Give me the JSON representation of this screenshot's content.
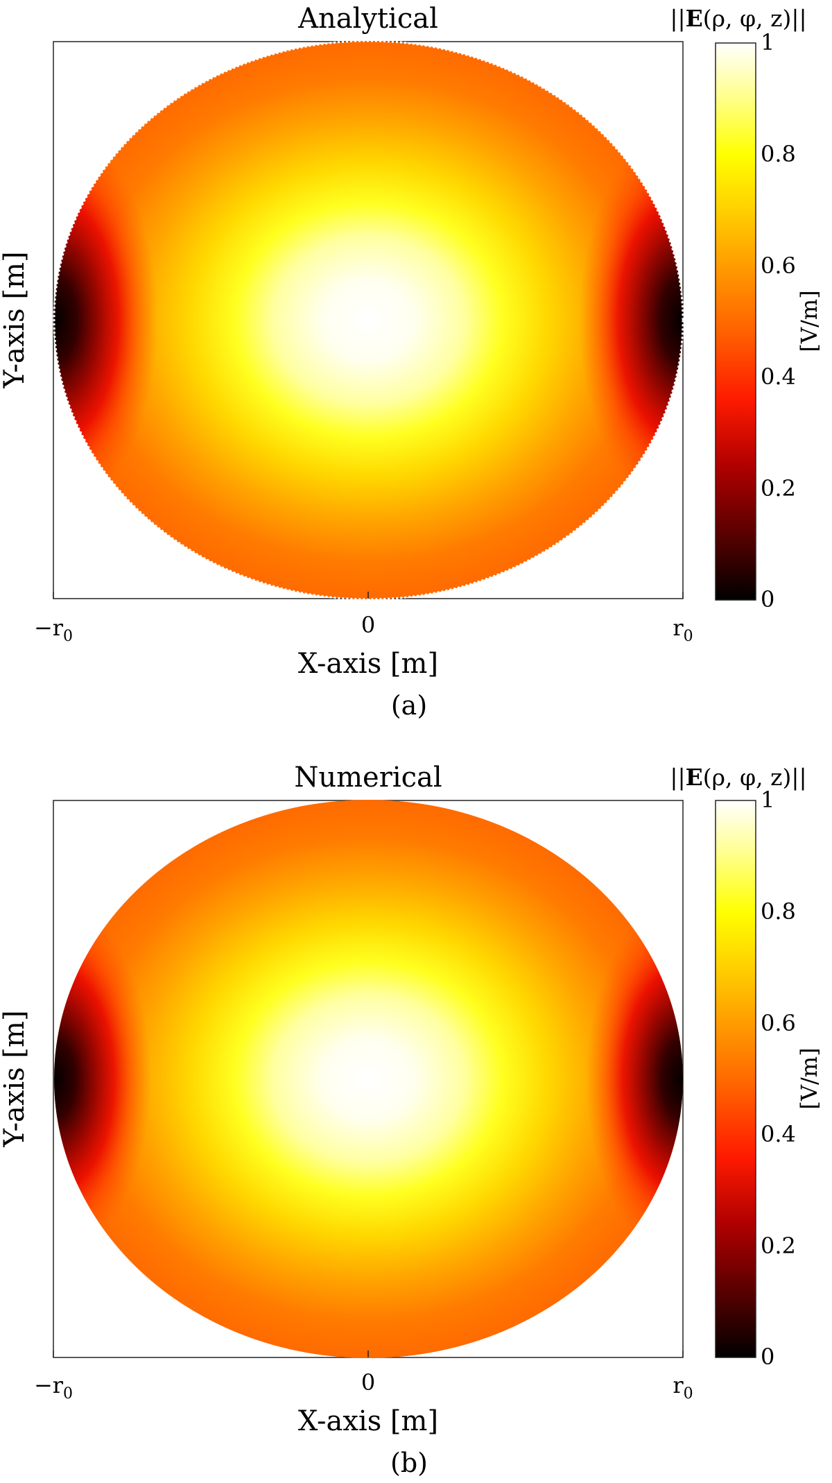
{
  "figure": {
    "panels": [
      {
        "title": "Analytical",
        "caption": "(a)",
        "xlabel": "X-axis [m]",
        "ylabel": "Y-axis [m]",
        "xticks": [
          "−r",
          "0",
          "r"
        ],
        "tick_subscript": "0",
        "colorbar_title": "||E(ρ, φ, z)||",
        "colorbar_title_bold": "E",
        "colorbar_unit": "[V/m]",
        "colorbar_ticks": [
          "0",
          "0.2",
          "0.4",
          "0.6",
          "0.8",
          "1"
        ]
      },
      {
        "title": "Numerical",
        "caption": "(b)",
        "xlabel": "X-axis [m]",
        "ylabel": "Y-axis [m]",
        "xticks": [
          "−r",
          "0",
          "r"
        ],
        "tick_subscript": "0",
        "colorbar_title": "||E(ρ, φ, z)||",
        "colorbar_title_bold": "E",
        "colorbar_unit": "[V/m]",
        "colorbar_ticks": [
          "0",
          "0.2",
          "0.4",
          "0.6",
          "0.8",
          "1"
        ]
      }
    ]
  },
  "chart_data": [
    {
      "type": "heatmap",
      "title": "Analytical",
      "xlabel": "X-axis [m]",
      "ylabel": "Y-axis [m]",
      "x_ticks": [
        "-r0",
        "0",
        "r0"
      ],
      "x_range": [
        -1,
        1
      ],
      "y_range": [
        -1,
        1
      ],
      "domain": "circular disk of radius r0 (pixelated edge)",
      "field": "||E(rho, phi, z)||",
      "colorbar": {
        "label": "[V/m]",
        "colormap": "hot",
        "range": [
          0,
          1
        ],
        "ticks": [
          0,
          0.2,
          0.4,
          0.6,
          0.8,
          1
        ]
      },
      "features": {
        "max_at": [
          0,
          0
        ],
        "max_value": 1,
        "min_at": [
          [
            -1,
            0
          ],
          [
            1,
            0
          ]
        ],
        "min_value": 0
      }
    },
    {
      "type": "heatmap",
      "title": "Numerical",
      "xlabel": "X-axis [m]",
      "ylabel": "Y-axis [m]",
      "x_ticks": [
        "-r0",
        "0",
        "r0"
      ],
      "x_range": [
        -1,
        1
      ],
      "y_range": [
        -1,
        1
      ],
      "domain": "circular disk of radius r0 (smooth edge)",
      "field": "||E(rho, phi, z)||",
      "colorbar": {
        "label": "[V/m]",
        "colormap": "hot",
        "range": [
          0,
          1
        ],
        "ticks": [
          0,
          0.2,
          0.4,
          0.6,
          0.8,
          1
        ]
      },
      "features": {
        "max_at": [
          0,
          0
        ],
        "max_value": 1,
        "min_at": [
          [
            -1,
            0
          ],
          [
            1,
            0
          ]
        ],
        "min_value": 0
      }
    }
  ],
  "colors": {
    "hot_stops": [
      "#000000",
      "#5a0000",
      "#b00000",
      "#ff1a00",
      "#ff5500",
      "#ff9000",
      "#ffc800",
      "#ffff00",
      "#ffff80",
      "#ffffff"
    ]
  }
}
